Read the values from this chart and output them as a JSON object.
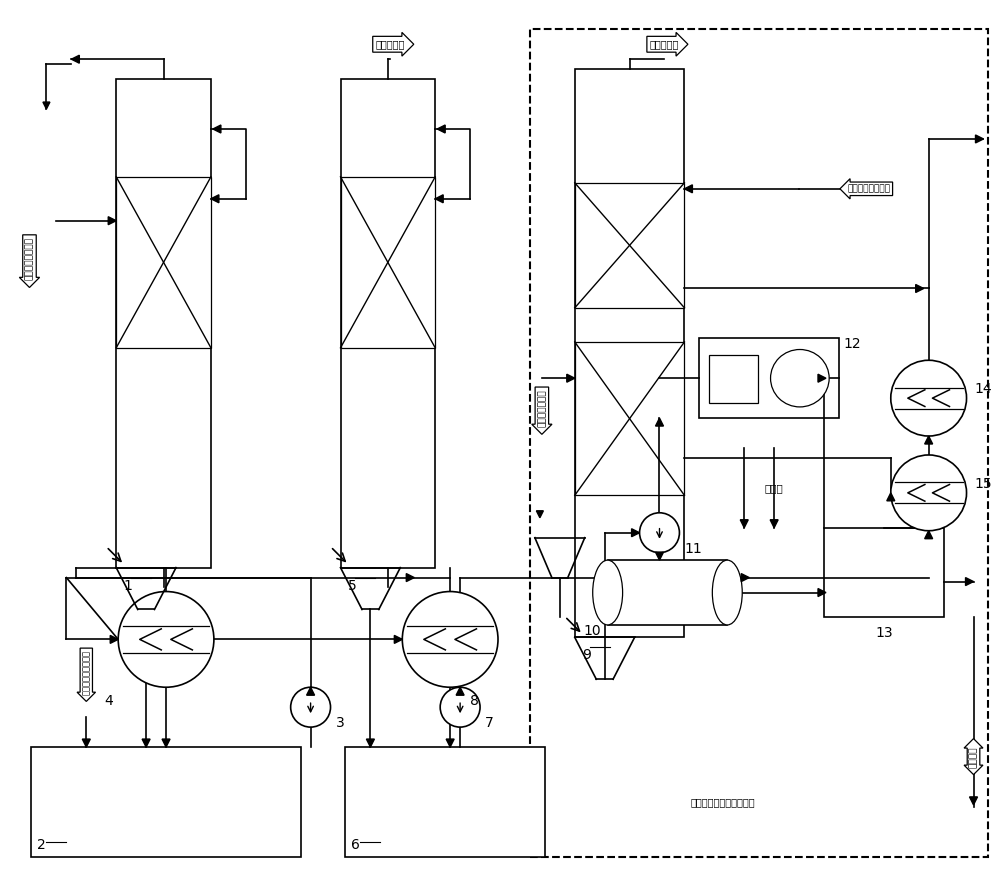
{
  "bg_color": "#ffffff",
  "line_color": "#000000",
  "text_labels": {
    "from_purified": "来自净化工序烟气",
    "to_first_conv": "去一次转化",
    "to_second_conv": "去二次转化",
    "from_first_conv": "来自一次转化气",
    "from_second_tower": "来自二吸塔循环酸",
    "process_water": "工艺水",
    "existing_system": "已设置的低温热回收系统",
    "into_absorption": "导入吸洗系统的硫酸",
    "output_acid": "硫酸产品"
  }
}
